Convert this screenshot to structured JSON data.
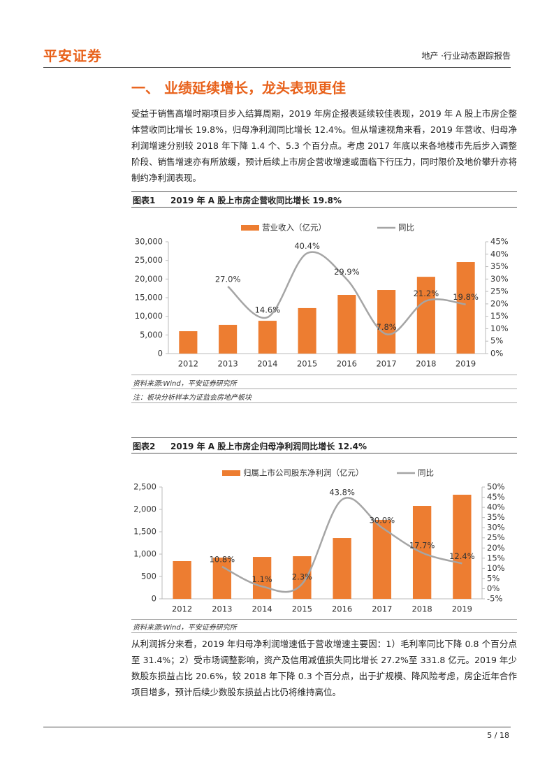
{
  "header": {
    "logo": "平安证券",
    "report_type": "地产 ·行业动态跟踪报告"
  },
  "section_title": "一、 业绩延续增长，龙头表现更佳",
  "paragraphs": [
    "受益于销售高增时期项目步入结算周期，2019 年房企报表延续较佳表现，2019 年 A 股上市房企整体营收同比增长 19.8%，归母净利润同比增长 12.4%。但从增速视角来看，2019 年营收、归母净利润增速分别较 2018 年下降 1.4 个、5.3 个百分点。考虑 2017 年底以来各地楼市先后步入调整阶段、销售增速亦有所放缓，预计后续上市房企营收增速或面临下行压力，同时限价及地价攀升亦将制约净利润表现。",
    "从利润拆分来看，2019 年归母净利润增速低于营收增速主要因：1）毛利率同比下降 0.8 个百分点至 31.4%；2）受市场调整影响，资产及信用减值损失同比增长 27.2%至 331.8 亿元。2019 年少数股东损益占比 20.6%，较 2018 年下降 0.3 个百分点，出于扩规模、降风险考虑，房企近年合作项目增多，预计后续少数股东损益占比仍将维持高位。"
  ],
  "figures": [
    {
      "label": "图表1",
      "caption": "2019 年 A 股上市房企营收同比增长 19.8%",
      "source": "资料来源:Wind，平安证券研究所",
      "note": "注：板块分析样本为证监会房地产板块"
    },
    {
      "label": "图表2",
      "caption": "2019 年 A 股上市房企归母净利润同比增长 12.4%",
      "source": "资料来源:Wind，平安证券研究所"
    }
  ],
  "chart_data": [
    {
      "type": "bar_line",
      "categories": [
        "2012",
        "2013",
        "2014",
        "2015",
        "2016",
        "2017",
        "2018",
        "2019"
      ],
      "series": [
        {
          "name": "营业收入（亿元）",
          "color": "#ed7d31",
          "type": "bar",
          "values": [
            6000,
            7700,
            8800,
            12200,
            15750,
            17060,
            20600,
            24560
          ]
        },
        {
          "name": "同比",
          "color": "#a5a5a5",
          "type": "line",
          "axis": "y2",
          "values": [
            null,
            27.0,
            14.6,
            40.4,
            29.9,
            7.8,
            21.2,
            19.8
          ],
          "value_labels": [
            null,
            "27.0%",
            "14.6%",
            "40.4%",
            "29.9%",
            "7.8%",
            "21.2%",
            "19.8%"
          ]
        }
      ],
      "ylim": [
        0,
        30000
      ],
      "yticks": [
        0,
        {
          "value": 5000,
          "label": "5,000"
        },
        {
          "value": 10000,
          "label": "10,000"
        },
        {
          "value": 15000,
          "label": "15,000"
        },
        {
          "value": 20000,
          "label": "20,000"
        },
        {
          "value": 25000,
          "label": "25,000"
        },
        {
          "value": 30000,
          "label": "30,000"
        }
      ],
      "y2lim": [
        0,
        45
      ],
      "y2ticks": [
        {
          "value": 0,
          "label": "0%"
        },
        {
          "value": 5,
          "label": "5%"
        },
        {
          "value": 10,
          "label": "10%"
        },
        {
          "value": 15,
          "label": "15%"
        },
        {
          "value": 20,
          "label": "20%"
        },
        {
          "value": 25,
          "label": "25%"
        },
        {
          "value": 30,
          "label": "30%"
        },
        {
          "value": 35,
          "label": "35%"
        },
        {
          "value": 40,
          "label": "40%"
        },
        {
          "value": 45,
          "label": "45%"
        }
      ],
      "legend": "top"
    },
    {
      "type": "bar_line",
      "categories": [
        "2012",
        "2013",
        "2014",
        "2015",
        "2016",
        "2017",
        "2018",
        "2019"
      ],
      "series": [
        {
          "name": "归属上市公司股东净利润（亿元）",
          "color": "#ed7d31",
          "type": "bar",
          "values": [
            844,
            922,
            937,
            953,
            1359,
            1766,
            2078,
            2328
          ]
        },
        {
          "name": "同比",
          "color": "#a5a5a5",
          "type": "line",
          "axis": "y2",
          "values": [
            null,
            10.8,
            1.1,
            2.3,
            43.8,
            30.0,
            17.7,
            12.4
          ],
          "value_labels": [
            null,
            "10.8%",
            "1.1%",
            "2.3%",
            "43.8%",
            "30.0%",
            "17.7%",
            "12.4%"
          ]
        }
      ],
      "ylim": [
        0,
        2500
      ],
      "yticks": [
        0,
        500,
        {
          "value": 1000,
          "label": "1,000"
        },
        {
          "value": 1500,
          "label": "1,500"
        },
        {
          "value": 2000,
          "label": "2,000"
        },
        {
          "value": 2500,
          "label": "2,500"
        }
      ],
      "y2lim": [
        -5,
        50
      ],
      "y2ticks": [
        {
          "value": -5,
          "label": "-5%"
        },
        {
          "value": 0,
          "label": "0%"
        },
        {
          "value": 5,
          "label": "5%"
        },
        {
          "value": 10,
          "label": "10%"
        },
        {
          "value": 15,
          "label": "15%"
        },
        {
          "value": 20,
          "label": "20%"
        },
        {
          "value": 25,
          "label": "25%"
        },
        {
          "value": 30,
          "label": "30%"
        },
        {
          "value": 35,
          "label": "35%"
        },
        {
          "value": 40,
          "label": "40%"
        },
        {
          "value": 45,
          "label": "45%"
        },
        {
          "value": 50,
          "label": "50%"
        }
      ],
      "legend": "top"
    }
  ],
  "page_number": "5 / 18"
}
